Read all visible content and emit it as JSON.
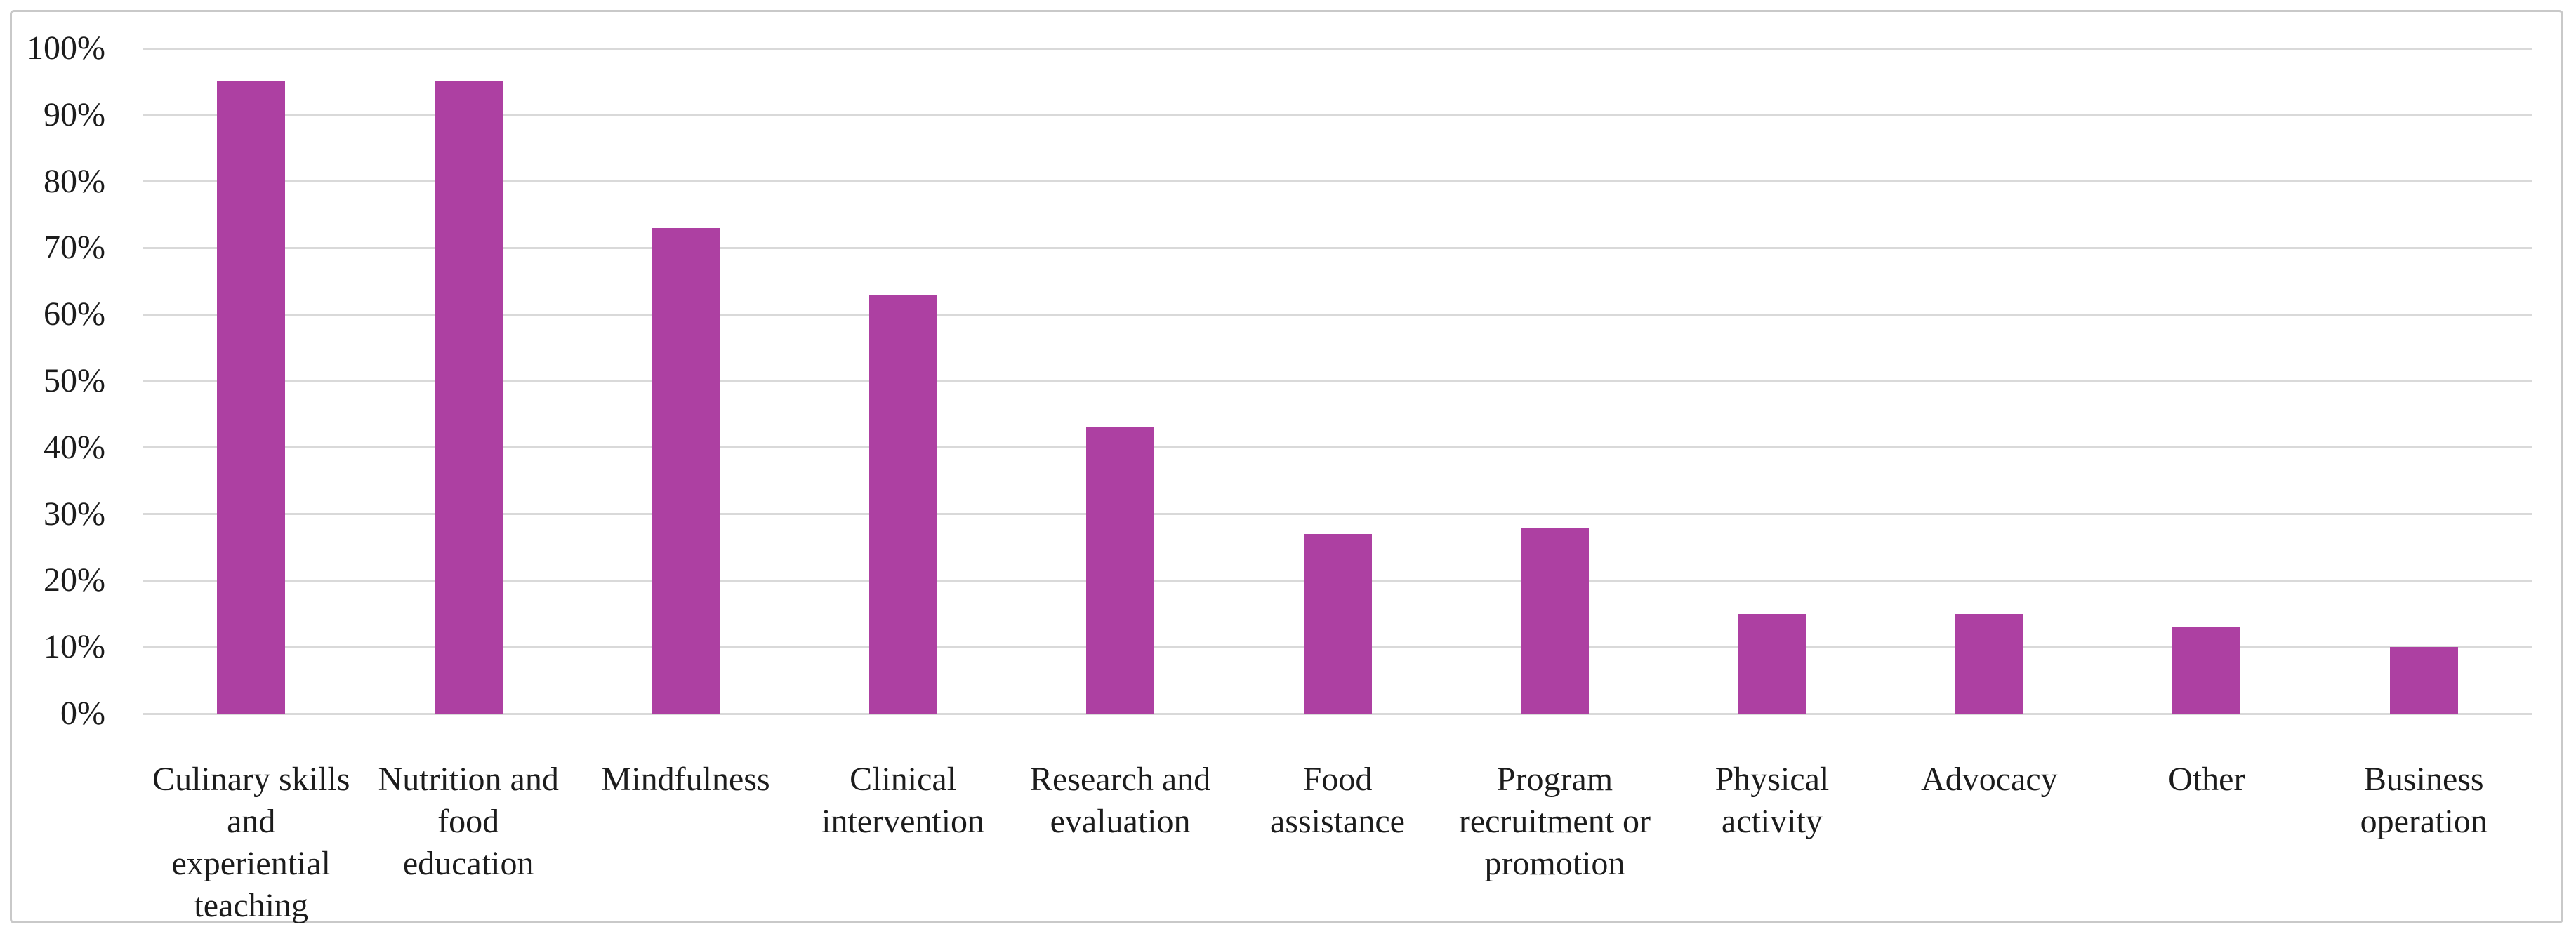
{
  "figure": {
    "background": "#ffffff",
    "border_color": "#c9c9c9"
  },
  "chart_data": {
    "type": "bar",
    "title": "",
    "xlabel": "",
    "ylabel": "",
    "unit": "%",
    "legend": "none",
    "grid": "horizontal",
    "gridline_color": "#d9d9d9",
    "bar_color": "#ad40a2",
    "text_color": "#1c1c1c",
    "ylim": [
      0,
      100
    ],
    "y_tick_step": 10,
    "y_tick_labels": [
      "100%",
      "90%",
      "80%",
      "70%",
      "60%",
      "50%",
      "40%",
      "30%",
      "20%",
      "10%",
      "0%"
    ],
    "categories": [
      {
        "label": "Culinary skills and experiential teaching",
        "lines": [
          "Culinary skills",
          "and",
          "experiential",
          "teaching"
        ],
        "value": 95
      },
      {
        "label": "Nutrition and food education",
        "lines": [
          "Nutrition and",
          "food",
          "education"
        ],
        "value": 95
      },
      {
        "label": "Mindfulness",
        "lines": [
          "Mindfulness"
        ],
        "value": 73
      },
      {
        "label": "Clinical intervention",
        "lines": [
          "Clinical",
          "intervention"
        ],
        "value": 63
      },
      {
        "label": "Research and evaluation",
        "lines": [
          "Research and",
          "evaluation"
        ],
        "value": 43
      },
      {
        "label": "Food assistance",
        "lines": [
          "Food",
          "assistance"
        ],
        "value": 27
      },
      {
        "label": "Program recruitment or promotion",
        "lines": [
          "Program",
          "recruitment or",
          "promotion"
        ],
        "value": 28
      },
      {
        "label": "Physical activity",
        "lines": [
          "Physical",
          "activity"
        ],
        "value": 15
      },
      {
        "label": "Advocacy",
        "lines": [
          "Advocacy"
        ],
        "value": 15
      },
      {
        "label": "Other",
        "lines": [
          "Other"
        ],
        "value": 13
      },
      {
        "label": "Business operation",
        "lines": [
          "Business",
          "operation"
        ],
        "value": 10
      }
    ]
  }
}
